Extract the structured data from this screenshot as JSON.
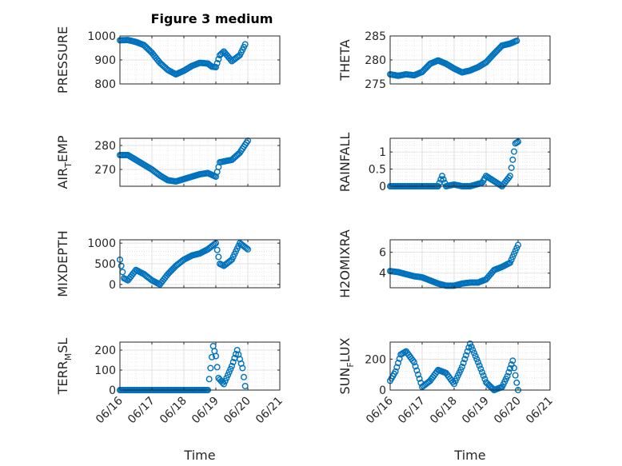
{
  "figure": {
    "title": "Figure 3 medium",
    "marker_color": "#0072BD",
    "axis_color": "#262626",
    "grid_color": "#d9d9d9",
    "x_ticks": [
      "06/16",
      "06/17",
      "06/18",
      "06/19",
      "06/20",
      "06/21"
    ],
    "x_label": "Time"
  },
  "chart_data": [
    {
      "type": "scatter",
      "ylabel": "PRESSURE",
      "xlim": [
        "06/16",
        "06/21"
      ],
      "ylim": [
        800,
        1000
      ],
      "yticks": [
        800,
        900,
        1000
      ],
      "grid": true,
      "x": [
        "06/16 00:00",
        "06/16 06:00",
        "06/16 12:00",
        "06/16 18:00",
        "06/17 00:00",
        "06/17 06:00",
        "06/17 12:00",
        "06/17 18:00",
        "06/18 00:00",
        "06/18 06:00",
        "06/18 12:00",
        "06/18 18:00",
        "06/18 21:00",
        "06/19 00:00",
        "06/19 03:00",
        "06/19 06:00",
        "06/19 12:00",
        "06/19 18:00",
        "06/19 22:00"
      ],
      "y": [
        982,
        983,
        975,
        962,
        930,
        888,
        858,
        840,
        855,
        875,
        888,
        885,
        872,
        870,
        920,
        935,
        895,
        920,
        965
      ]
    },
    {
      "type": "scatter",
      "ylabel": "THETA",
      "xlim": [
        "06/16",
        "06/21"
      ],
      "ylim": [
        275,
        285
      ],
      "yticks": [
        275,
        280,
        285
      ],
      "grid": true,
      "x": [
        "06/16 00:00",
        "06/16 06:00",
        "06/16 12:00",
        "06/16 18:00",
        "06/17 00:00",
        "06/17 06:00",
        "06/17 12:00",
        "06/17 18:00",
        "06/18 00:00",
        "06/18 06:00",
        "06/18 12:00",
        "06/18 18:00",
        "06/19 00:00",
        "06/19 06:00",
        "06/19 12:00",
        "06/19 18:00",
        "06/19 23:00"
      ],
      "y": [
        277,
        276.7,
        277,
        276.8,
        277.5,
        279.2,
        279.9,
        279.2,
        278.2,
        277.4,
        277.8,
        278.5,
        279.5,
        281.3,
        283.0,
        283.4,
        284.0
      ]
    },
    {
      "type": "scatter",
      "ylabel": "AIR_TEMP",
      "xlim": [
        "06/16",
        "06/21"
      ],
      "ylim": [
        263,
        283
      ],
      "yticks": [
        270,
        280
      ],
      "grid": true,
      "x": [
        "06/16 00:00",
        "06/16 06:00",
        "06/16 12:00",
        "06/16 18:00",
        "06/17 00:00",
        "06/17 06:00",
        "06/17 12:00",
        "06/17 18:00",
        "06/18 00:00",
        "06/18 06:00",
        "06/18 12:00",
        "06/18 18:00",
        "06/19 00:00",
        "06/19 03:00",
        "06/19 12:00",
        "06/19 18:00",
        "06/20 00:00"
      ],
      "y": [
        276,
        276,
        274,
        272,
        270,
        267.5,
        265.5,
        265,
        266,
        267,
        268,
        268.5,
        267,
        273,
        274,
        277,
        282
      ]
    },
    {
      "type": "scatter",
      "ylabel": "RAINFALL",
      "xlim": [
        "06/16",
        "06/21"
      ],
      "ylim": [
        0,
        1.4
      ],
      "yticks": [
        0,
        0.5,
        1
      ],
      "grid": true,
      "x": [
        "06/16 00:00",
        "06/16 12:00",
        "06/17 00:00",
        "06/17 12:00",
        "06/17 15:00",
        "06/17 18:00",
        "06/18 00:00",
        "06/18 06:00",
        "06/18 12:00",
        "06/18 21:00",
        "06/19 00:00",
        "06/19 06:00",
        "06/19 12:00",
        "06/19 18:00",
        "06/19 22:00",
        "06/20 00:00"
      ],
      "y": [
        0,
        0,
        0,
        0,
        0.3,
        0,
        0.05,
        0,
        0,
        0.1,
        0.3,
        0.15,
        0,
        0.3,
        1.25,
        1.3
      ]
    },
    {
      "type": "scatter",
      "ylabel": "MIXDEPTH",
      "xlim": [
        "06/16",
        "06/21"
      ],
      "ylim": [
        -80,
        1080
      ],
      "yticks": [
        0,
        500,
        1000
      ],
      "grid": true,
      "x": [
        "06/16 00:00",
        "06/16 03:00",
        "06/16 06:00",
        "06/16 12:00",
        "06/16 18:00",
        "06/17 00:00",
        "06/17 06:00",
        "06/17 12:00",
        "06/17 18:00",
        "06/18 00:00",
        "06/18 06:00",
        "06/18 12:00",
        "06/18 18:00",
        "06/19 00:00",
        "06/19 03:00",
        "06/19 06:00",
        "06/19 12:00",
        "06/19 18:00",
        "06/20 00:00"
      ],
      "y": [
        600,
        150,
        100,
        350,
        250,
        100,
        0,
        250,
        450,
        600,
        700,
        750,
        850,
        1000,
        500,
        450,
        600,
        1000,
        850
      ]
    },
    {
      "type": "scatter",
      "ylabel": "H2OMIXRA",
      "xlim": [
        "06/16",
        "06/21"
      ],
      "ylim": [
        2.6,
        7.2
      ],
      "yticks": [
        4,
        6
      ],
      "grid": true,
      "x": [
        "06/16 00:00",
        "06/16 06:00",
        "06/16 12:00",
        "06/16 18:00",
        "06/17 00:00",
        "06/17 06:00",
        "06/17 12:00",
        "06/17 18:00",
        "06/18 00:00",
        "06/18 06:00",
        "06/18 12:00",
        "06/18 18:00",
        "06/19 00:00",
        "06/19 06:00",
        "06/19 12:00",
        "06/19 18:00",
        "06/20 00:00"
      ],
      "y": [
        4.2,
        4.1,
        3.9,
        3.7,
        3.6,
        3.3,
        3.0,
        2.8,
        2.8,
        3.0,
        3.1,
        3.1,
        3.4,
        4.3,
        4.6,
        5.0,
        6.7
      ]
    },
    {
      "type": "scatter",
      "ylabel": "TERR_MSL",
      "xlim": [
        "06/16",
        "06/21"
      ],
      "ylim": [
        0,
        240
      ],
      "yticks": [
        0,
        100,
        200
      ],
      "grid": true,
      "x": [
        "06/16 00:00",
        "06/16 12:00",
        "06/17 00:00",
        "06/17 12:00",
        "06/18 00:00",
        "06/18 12:00",
        "06/18 18:00",
        "06/18 22:00",
        "06/19 00:00",
        "06/19 02:00",
        "06/19 06:00",
        "06/19 12:00",
        "06/19 16:00",
        "06/19 20:00",
        "06/19 22:00"
      ],
      "y": [
        0,
        0,
        0,
        0,
        0,
        0,
        0,
        220,
        170,
        60,
        30,
        120,
        200,
        110,
        20
      ]
    },
    {
      "type": "scatter",
      "ylabel": "SUN_FLUX",
      "xlim": [
        "06/16",
        "06/21"
      ],
      "ylim": [
        0,
        310
      ],
      "yticks": [
        0,
        200
      ],
      "grid": true,
      "x": [
        "06/16 00:00",
        "06/16 04:00",
        "06/16 08:00",
        "06/16 12:00",
        "06/16 18:00",
        "06/17 00:00",
        "06/17 06:00",
        "06/17 12:00",
        "06/17 18:00",
        "06/18 00:00",
        "06/18 06:00",
        "06/18 12:00",
        "06/18 18:00",
        "06/19 00:00",
        "06/19 06:00",
        "06/19 12:00",
        "06/19 16:00",
        "06/19 20:00",
        "06/20 00:00"
      ],
      "y": [
        60,
        120,
        230,
        250,
        180,
        20,
        60,
        130,
        110,
        40,
        150,
        300,
        180,
        50,
        0,
        20,
        90,
        190,
        0
      ]
    }
  ]
}
